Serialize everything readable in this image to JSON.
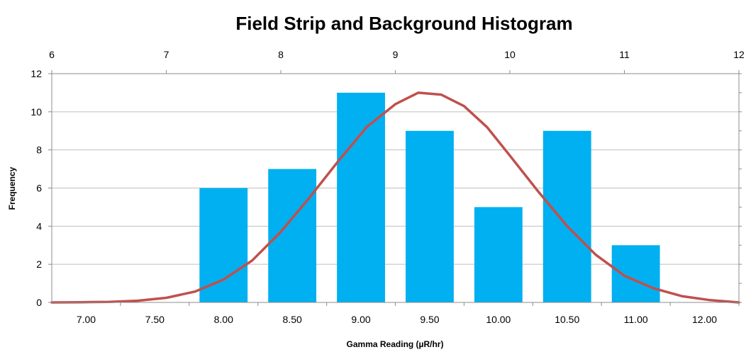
{
  "chart_data": {
    "type": "bar",
    "title": "Field Strip and Background Histogram",
    "xlabel": "Gamma Reading (µR/hr)",
    "ylabel": "Frequency",
    "categories": [
      "7.00",
      "7.50",
      "8.00",
      "8.50",
      "9.00",
      "9.50",
      "10.00",
      "10.50",
      "11.00",
      "12.00"
    ],
    "values": [
      0,
      0,
      6,
      7,
      11,
      9,
      5,
      9,
      3,
      0
    ],
    "ylim": [
      0,
      12
    ],
    "yticks": [
      "0",
      "2",
      "4",
      "6",
      "8",
      "10",
      "12"
    ],
    "secondary_x_ticks": [
      "6",
      "7",
      "8",
      "9",
      "10",
      "11",
      "12"
    ],
    "secondary_xlim": [
      6,
      12
    ],
    "curve": {
      "type": "line",
      "x": [
        6.0,
        6.25,
        6.5,
        6.75,
        7.0,
        7.25,
        7.5,
        7.75,
        8.0,
        8.25,
        8.5,
        8.75,
        9.0,
        9.2,
        9.4,
        9.6,
        9.8,
        10.0,
        10.25,
        10.5,
        10.75,
        11.0,
        11.25,
        11.5,
        11.75,
        12.0
      ],
      "y": [
        0.0,
        0.01,
        0.03,
        0.09,
        0.24,
        0.57,
        1.2,
        2.2,
        3.7,
        5.5,
        7.4,
        9.2,
        10.4,
        11.0,
        10.9,
        10.3,
        9.2,
        7.7,
        5.8,
        4.0,
        2.5,
        1.4,
        0.75,
        0.33,
        0.12,
        0.0
      ]
    },
    "grid": true,
    "colors": {
      "bars": "#00b0f0",
      "curve": "#c0504d"
    }
  }
}
